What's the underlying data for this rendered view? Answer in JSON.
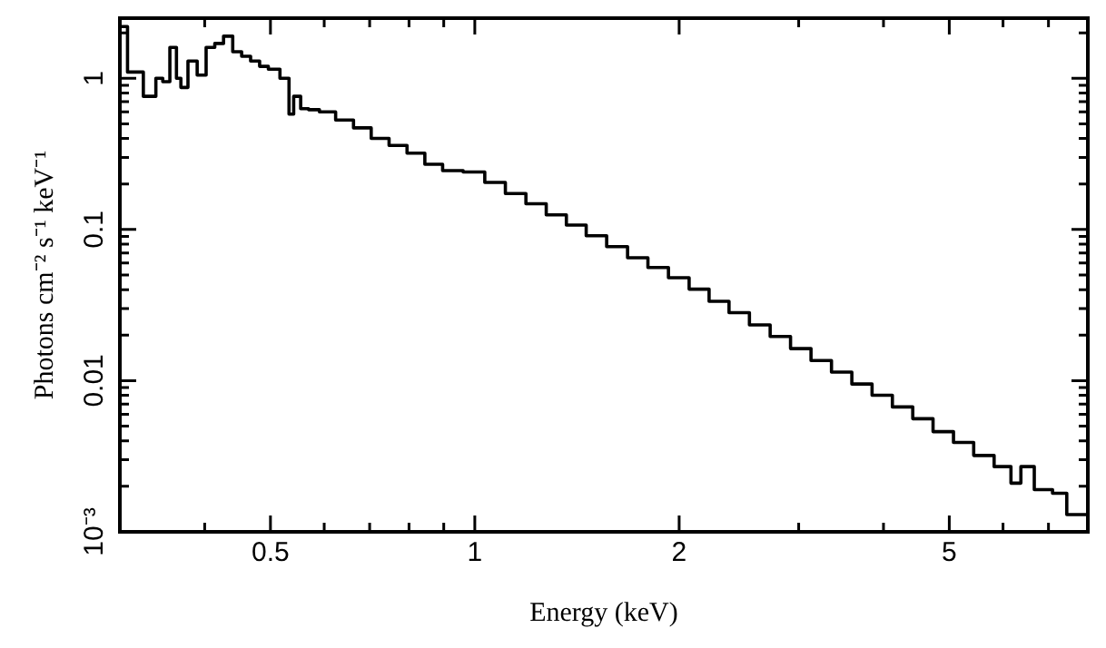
{
  "chart_data": {
    "type": "step",
    "xlabel": "Energy (keV)",
    "ylabel": "Photons cm⁻² s⁻¹ keV⁻¹",
    "log": "xy",
    "grid": false,
    "legend": false,
    "marker": "none",
    "line_style": "solid",
    "xlim": [
      0.3,
      8
    ],
    "ylim": [
      0.001,
      2.5
    ],
    "xticks": [
      {
        "value": 0.3,
        "label": null
      },
      {
        "value": 0.4,
        "label": null
      },
      0.5,
      {
        "value": 0.6,
        "label": null
      },
      {
        "value": 0.7,
        "label": null
      },
      {
        "value": 0.8,
        "label": null
      },
      {
        "value": 0.9,
        "label": null
      },
      1,
      2,
      {
        "value": 3,
        "label": null
      },
      {
        "value": 4,
        "label": null
      },
      5,
      {
        "value": 6,
        "label": null
      },
      {
        "value": 7,
        "label": null
      },
      {
        "value": 8,
        "label": null
      }
    ],
    "yticks": [
      {
        "value": 0.001,
        "label": "10⁻³"
      },
      {
        "value": 0.002,
        "label": null
      },
      {
        "value": 0.003,
        "label": null
      },
      {
        "value": 0.004,
        "label": null
      },
      {
        "value": 0.005,
        "label": null
      },
      {
        "value": 0.006,
        "label": null
      },
      {
        "value": 0.007,
        "label": null
      },
      {
        "value": 0.008,
        "label": null
      },
      {
        "value": 0.009,
        "label": null
      },
      0.01,
      {
        "value": 0.02,
        "label": null
      },
      {
        "value": 0.03,
        "label": null
      },
      {
        "value": 0.04,
        "label": null
      },
      {
        "value": 0.05,
        "label": null
      },
      {
        "value": 0.06,
        "label": null
      },
      {
        "value": 0.07,
        "label": null
      },
      {
        "value": 0.08,
        "label": null
      },
      {
        "value": 0.09,
        "label": null
      },
      0.1,
      {
        "value": 0.2,
        "label": null
      },
      {
        "value": 0.3,
        "label": null
      },
      {
        "value": 0.4,
        "label": null
      },
      {
        "value": 0.5,
        "label": null
      },
      {
        "value": 0.6,
        "label": null
      },
      {
        "value": 0.7,
        "label": null
      },
      {
        "value": 0.8,
        "label": null
      },
      {
        "value": 0.9,
        "label": null
      },
      1,
      {
        "value": 2,
        "label": null
      }
    ],
    "series": [
      {
        "color": "#000000",
        "x": [
          0.3,
          0.316,
          0.334,
          0.344,
          0.35,
          0.361,
          0.366,
          0.372,
          0.384,
          0.396,
          0.408,
          0.42,
          0.433,
          0.447,
          0.46,
          0.475,
          0.489,
          0.504,
          0.529,
          0.536,
          0.546,
          0.562,
          0.576,
          0.605,
          0.643,
          0.683,
          0.725,
          0.771,
          0.819,
          0.87,
          0.924,
          1.0,
          1.07,
          1.15,
          1.23,
          1.32,
          1.41,
          1.51,
          1.62,
          1.74,
          1.86,
          2.0,
          2.14,
          2.29,
          2.45,
          2.63,
          2.82,
          3.02,
          3.24,
          3.47,
          3.72,
          3.98,
          4.27,
          4.57,
          4.9,
          5.25,
          5.62,
          6.03,
          6.3,
          6.45,
          6.9,
          7.3,
          7.6,
          8.0
        ],
        "values": [
          2.2,
          1.1,
          0.76,
          1.0,
          0.95,
          1.6,
          1.0,
          0.87,
          1.3,
          1.05,
          1.6,
          1.7,
          1.9,
          1.5,
          1.4,
          1.3,
          1.2,
          1.15,
          1.0,
          0.58,
          0.76,
          0.63,
          0.62,
          0.6,
          0.53,
          0.47,
          0.4,
          0.36,
          0.32,
          0.27,
          0.245,
          0.24,
          0.205,
          0.173,
          0.148,
          0.125,
          0.107,
          0.091,
          0.077,
          0.065,
          0.056,
          0.048,
          0.0403,
          0.0335,
          0.0282,
          0.0234,
          0.0196,
          0.0163,
          0.0136,
          0.0114,
          0.0095,
          0.008,
          0.0067,
          0.0056,
          0.0046,
          0.0039,
          0.0032,
          0.0027,
          0.0021,
          0.0027,
          0.0019,
          0.0018,
          0.0013,
          0.0013
        ]
      }
    ]
  }
}
